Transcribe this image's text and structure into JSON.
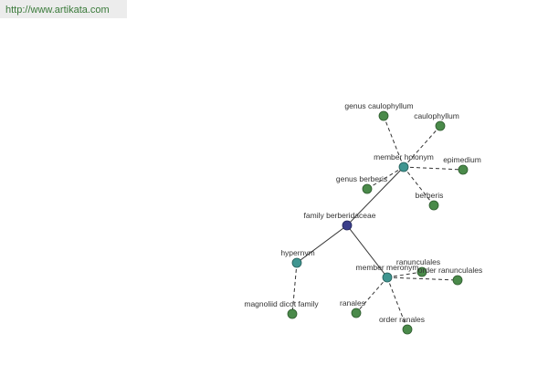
{
  "header": {
    "url": "http://www.artikata.com"
  },
  "nodes": [
    {
      "label": "family berberidaceae"
    },
    {
      "label": "member holonym"
    },
    {
      "label": "genus caulophyllum"
    },
    {
      "label": "caulophyllum"
    },
    {
      "label": "epimedium"
    },
    {
      "label": "genus berberis"
    },
    {
      "label": "berberis"
    },
    {
      "label": "hypernym"
    },
    {
      "label": "magnoliid dicot family"
    },
    {
      "label": "member meronym"
    },
    {
      "label": "ranunculales"
    },
    {
      "label": "order ranunculales"
    },
    {
      "label": "ranales"
    },
    {
      "label": "order ranales"
    }
  ]
}
